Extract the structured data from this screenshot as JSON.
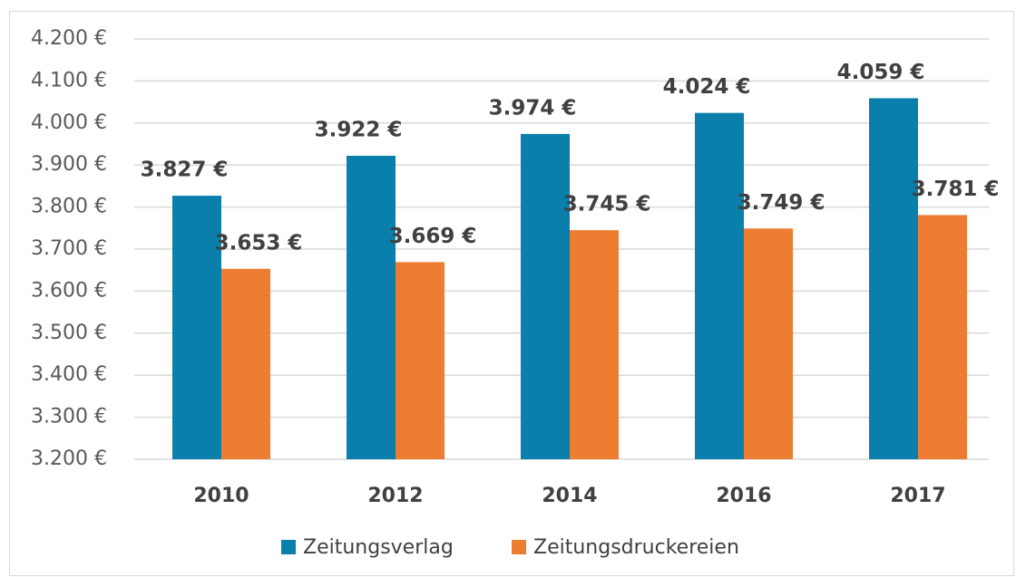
{
  "chart_data": {
    "type": "bar",
    "categories": [
      "2010",
      "2012",
      "2014",
      "2016",
      "2017"
    ],
    "series": [
      {
        "name": "Zeitungsverlag",
        "color": "#0a7fab",
        "values": [
          3827,
          3922,
          3974,
          4024,
          4059
        ],
        "value_labels": [
          "3.827 €",
          "3.922 €",
          "3.974 €",
          "4.024 €",
          "4.059 €"
        ]
      },
      {
        "name": "Zeitungsdruckereien",
        "color": "#ed7d31",
        "values": [
          3653,
          3669,
          3745,
          3749,
          3781
        ],
        "value_labels": [
          "3.653 €",
          "3.669 €",
          "3.745 €",
          "3.749 €",
          "3.781 €"
        ]
      }
    ],
    "ylim": [
      3200,
      4200
    ],
    "yticks": [
      {
        "value": 3200,
        "label": "3.200 €"
      },
      {
        "value": 3300,
        "label": "3.300 €"
      },
      {
        "value": 3400,
        "label": "3.400 €"
      },
      {
        "value": 3500,
        "label": "3.500 €"
      },
      {
        "value": 3600,
        "label": "3.600 €"
      },
      {
        "value": 3700,
        "label": "3.700 €"
      },
      {
        "value": 3800,
        "label": "3.800 €"
      },
      {
        "value": 3900,
        "label": "3.900 €"
      },
      {
        "value": 4000,
        "label": "4.000 €"
      },
      {
        "value": 4100,
        "label": "4.100 €"
      },
      {
        "value": 4200,
        "label": "4.200 €"
      }
    ],
    "grid": true,
    "legend": "bottom"
  }
}
